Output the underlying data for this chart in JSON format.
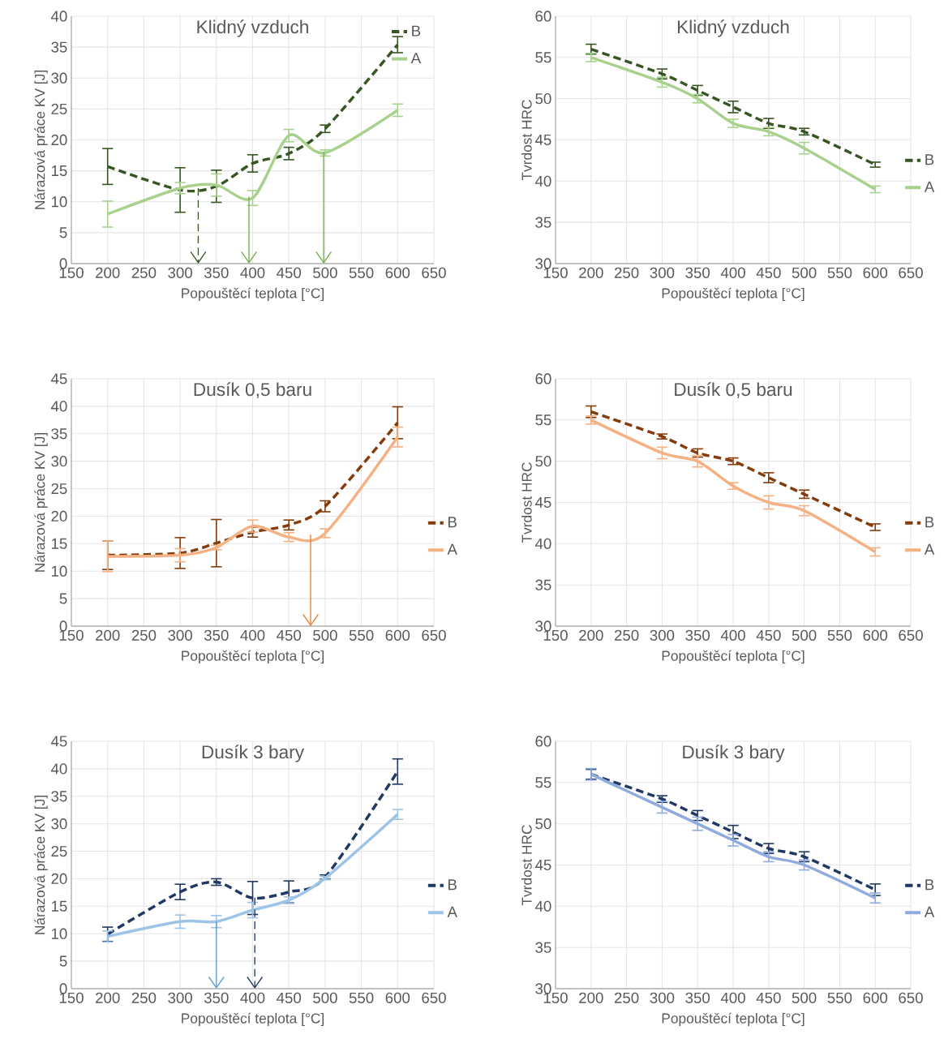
{
  "chart_data": [
    {
      "type": "line",
      "title": "Klidný vzduch",
      "xlabel": "Popouštěcí teplota [°C]",
      "ylabel": "Nárazová práce KV [J]",
      "x": [
        200,
        300,
        350,
        400,
        450,
        500,
        600
      ],
      "xlim": [
        150,
        650
      ],
      "xticks": [
        150,
        200,
        250,
        300,
        350,
        400,
        450,
        500,
        550,
        600,
        650
      ],
      "ylim": [
        0,
        40
      ],
      "yticks": [
        0,
        5,
        10,
        15,
        20,
        25,
        30,
        35,
        40
      ],
      "grid": true,
      "legend": "top right",
      "series": [
        {
          "name": "B",
          "color": "#375623",
          "line_style": "dashed",
          "values": [
            15.7,
            11.9,
            12.5,
            16.2,
            17.8,
            21.8,
            35.4
          ],
          "errors": [
            2.9,
            3.6,
            2.6,
            1.4,
            1.0,
            0.6,
            1.3
          ]
        },
        {
          "name": "A",
          "color": "#a9d18e",
          "line_style": "solid",
          "values": [
            8.0,
            12.2,
            12.7,
            10.6,
            20.7,
            17.9,
            24.8
          ],
          "errors": [
            2.1,
            0.9,
            1.8,
            1.2,
            1.0,
            0.5,
            1.0
          ]
        }
      ],
      "ref_lines": [
        {
          "axis": "x",
          "value": 325,
          "color": "#375623",
          "line_style": "dashed"
        },
        {
          "axis": "x",
          "value": 395,
          "color": "#70ad47",
          "line_style": "solid"
        },
        {
          "axis": "x",
          "value": 498,
          "color": "#70ad47",
          "line_style": "solid"
        }
      ]
    },
    {
      "type": "line",
      "title": "Klidný vzduch",
      "xlabel": "Popouštěcí teplota [°C]",
      "ylabel": "Tvrdost HRC",
      "x": [
        200,
        300,
        350,
        400,
        450,
        500,
        600
      ],
      "xlim": [
        150,
        650
      ],
      "xticks": [
        150,
        200,
        250,
        300,
        350,
        400,
        450,
        500,
        550,
        600,
        650
      ],
      "ylim": [
        30,
        60
      ],
      "yticks": [
        30,
        35,
        40,
        45,
        50,
        55,
        60
      ],
      "grid": true,
      "legend": "right",
      "series": [
        {
          "name": "B",
          "color": "#375623",
          "line_style": "dashed",
          "values": [
            56,
            53,
            51,
            49,
            47,
            46,
            42
          ],
          "errors": [
            0.6,
            0.6,
            0.6,
            0.7,
            0.6,
            0.4,
            0.3
          ]
        },
        {
          "name": "A",
          "color": "#a9d18e",
          "line_style": "solid",
          "values": [
            55,
            52,
            50,
            47,
            46,
            44,
            39
          ],
          "errors": [
            0.5,
            0.6,
            0.5,
            0.5,
            0.5,
            0.7,
            0.4
          ]
        }
      ]
    },
    {
      "type": "line",
      "title": "Dusík 0,5 baru",
      "xlabel": "Popouštěcí teplota [°C]",
      "ylabel": "Nárazová práce KV [J]",
      "x": [
        200,
        300,
        350,
        400,
        450,
        500,
        600
      ],
      "xlim": [
        150,
        650
      ],
      "xticks": [
        150,
        200,
        250,
        300,
        350,
        400,
        450,
        500,
        550,
        600,
        650
      ],
      "ylim": [
        0,
        45
      ],
      "yticks": [
        0,
        5,
        10,
        15,
        20,
        25,
        30,
        35,
        40,
        45
      ],
      "grid": true,
      "legend": "right",
      "series": [
        {
          "name": "B",
          "color": "#843c0c",
          "line_style": "dashed",
          "values": [
            12.9,
            13.3,
            15.1,
            17.1,
            18.4,
            21.8,
            37.0
          ],
          "errors": [
            2.6,
            2.8,
            4.3,
            0.9,
            0.9,
            1.0,
            2.9
          ]
        },
        {
          "name": "A",
          "color": "#f4b183",
          "line_style": "solid",
          "values": [
            12.7,
            12.9,
            14.3,
            18.2,
            16.2,
            16.9,
            34.4
          ],
          "errors": [
            2.8,
            1.2,
            0.4,
            1.1,
            0.8,
            0.8,
            1.8
          ]
        }
      ],
      "ref_lines": [
        {
          "axis": "x",
          "value": 480,
          "color": "#ed7d31",
          "line_style": "solid"
        }
      ]
    },
    {
      "type": "line",
      "title": "Dusík 0,5 baru",
      "xlabel": "Popouštěcí teplota [°C]",
      "ylabel": "Tvrdost HRC",
      "x": [
        200,
        300,
        350,
        400,
        450,
        500,
        600
      ],
      "xlim": [
        150,
        650
      ],
      "xticks": [
        150,
        200,
        250,
        300,
        350,
        400,
        450,
        500,
        550,
        600,
        650
      ],
      "ylim": [
        30,
        60
      ],
      "yticks": [
        30,
        35,
        40,
        45,
        50,
        55,
        60
      ],
      "grid": true,
      "legend": "right",
      "series": [
        {
          "name": "B",
          "color": "#843c0c",
          "line_style": "dashed",
          "values": [
            56,
            53,
            51,
            50,
            48,
            46,
            42
          ],
          "errors": [
            0.7,
            0.3,
            0.5,
            0.4,
            0.6,
            0.5,
            0.4
          ]
        },
        {
          "name": "A",
          "color": "#f4b183",
          "line_style": "solid",
          "values": [
            55,
            51,
            50,
            47,
            45,
            44,
            39
          ],
          "errors": [
            0.5,
            0.7,
            0.7,
            0.4,
            0.8,
            0.6,
            0.5
          ]
        }
      ]
    },
    {
      "type": "line",
      "title": "Dusík 3 bary",
      "xlabel": "Popouštěcí teplota [°C]",
      "ylabel": "Nárazová práce KV [J]",
      "x": [
        200,
        300,
        350,
        400,
        450,
        500,
        600
      ],
      "xlim": [
        150,
        650
      ],
      "xticks": [
        150,
        200,
        250,
        300,
        350,
        400,
        450,
        500,
        550,
        600,
        650
      ],
      "ylim": [
        0,
        45
      ],
      "yticks": [
        0,
        5,
        10,
        15,
        20,
        25,
        30,
        35,
        40,
        45
      ],
      "grid": true,
      "legend": "right",
      "series": [
        {
          "name": "B",
          "color": "#203864",
          "line_style": "dashed",
          "values": [
            9.9,
            17.6,
            19.4,
            16.5,
            17.6,
            20.3,
            39.5
          ],
          "errors": [
            1.3,
            1.4,
            0.6,
            3.0,
            2.0,
            0.4,
            2.3
          ]
        },
        {
          "name": "A",
          "color": "#9dc3e6",
          "line_style": "solid",
          "values": [
            9.5,
            12.2,
            12.2,
            14.3,
            16.1,
            20.1,
            31.7
          ],
          "errors": [
            1.0,
            1.2,
            1.1,
            1.4,
            0.6,
            0.3,
            0.9
          ]
        }
      ],
      "ref_lines": [
        {
          "axis": "x",
          "value": 350,
          "color": "#5b9bd5",
          "line_style": "solid"
        },
        {
          "axis": "x",
          "value": 403,
          "color": "#203864",
          "line_style": "dashed"
        }
      ]
    },
    {
      "type": "line",
      "title": "Dusík 3 bary",
      "xlabel": "Popouštěcí teplota [°C]",
      "ylabel": "Tvrdost HRC",
      "x": [
        200,
        300,
        350,
        400,
        450,
        500,
        600
      ],
      "xlim": [
        150,
        650
      ],
      "xticks": [
        150,
        200,
        250,
        300,
        350,
        400,
        450,
        500,
        550,
        600,
        650
      ],
      "ylim": [
        30,
        60
      ],
      "yticks": [
        30,
        35,
        40,
        45,
        50,
        55,
        60
      ],
      "grid": true,
      "legend": "right",
      "series": [
        {
          "name": "B",
          "color": "#203864",
          "line_style": "dashed",
          "values": [
            56,
            53,
            51,
            49,
            47,
            46,
            42
          ],
          "errors": [
            0.6,
            0.4,
            0.6,
            0.8,
            0.6,
            0.6,
            0.7
          ]
        },
        {
          "name": "A",
          "color": "#8faadc",
          "line_style": "solid",
          "values": [
            56,
            52,
            50,
            48,
            46,
            45,
            41
          ],
          "errors": [
            0.7,
            0.7,
            0.8,
            0.7,
            0.6,
            0.6,
            0.6
          ]
        }
      ]
    }
  ]
}
